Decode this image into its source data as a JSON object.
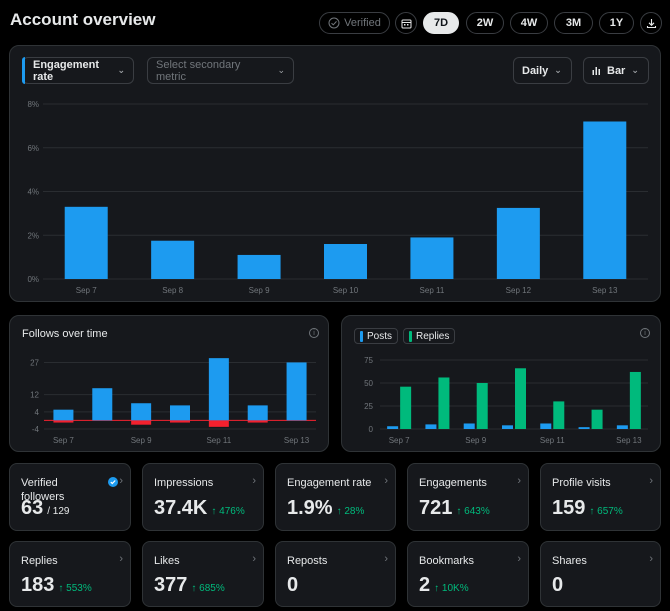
{
  "page": {
    "title": "Account overview"
  },
  "header": {
    "verified_label": "Verified",
    "ranges": [
      "7D",
      "2W",
      "4W",
      "3M",
      "1Y"
    ],
    "selected_range": "7D"
  },
  "main_chart": {
    "primary_metric": "Engagement rate",
    "secondary_placeholder": "Select secondary metric",
    "interval": "Daily",
    "chart_type_label": "Bar"
  },
  "follows_panel": {
    "title": "Follows over time"
  },
  "posts_panel": {
    "legend": [
      "Posts",
      "Replies"
    ]
  },
  "colors": {
    "blue": "#1d9bf0",
    "red": "#f4212e",
    "green": "#00ba7c"
  },
  "chart_data": [
    {
      "type": "bar",
      "categories": [
        "Sep 7",
        "Sep 8",
        "Sep 9",
        "Sep 10",
        "Sep 11",
        "Sep 12",
        "Sep 13"
      ],
      "values": [
        3.3,
        1.75,
        1.1,
        1.6,
        1.9,
        3.25,
        7.2
      ],
      "yticks": [
        "0%",
        "2%",
        "4%",
        "6%",
        "8%"
      ],
      "ylim": [
        0,
        8
      ]
    },
    {
      "type": "bar",
      "title": "Follows over time",
      "categories": [
        "Sep 7",
        "Sep 8",
        "Sep 9",
        "Sep 10",
        "Sep 11",
        "Sep 12",
        "Sep 13"
      ],
      "xticks": [
        "Sep 7",
        "Sep 9",
        "Sep 11",
        "Sep 13"
      ],
      "series": [
        {
          "values": [
            5,
            15,
            8,
            7,
            29,
            7,
            27
          ]
        },
        {
          "values": [
            -1,
            0,
            -2,
            -1,
            -3,
            -1,
            0
          ]
        }
      ],
      "yticks": [
        "-4",
        "4",
        "12",
        "27"
      ],
      "ylim": [
        -4,
        30
      ]
    },
    {
      "type": "bar",
      "categories": [
        "Sep 7",
        "Sep 8",
        "Sep 9",
        "Sep 10",
        "Sep 11",
        "Sep 12",
        "Sep 13"
      ],
      "xticks": [
        "Sep 7",
        "Sep 9",
        "Sep 11",
        "Sep 13"
      ],
      "series": [
        {
          "name": "Posts",
          "values": [
            3,
            5,
            6,
            4,
            6,
            2,
            4
          ]
        },
        {
          "name": "Replies",
          "values": [
            46,
            56,
            50,
            66,
            30,
            21,
            62
          ]
        }
      ],
      "yticks": [
        "0",
        "25",
        "50",
        "75"
      ],
      "ylim": [
        0,
        75
      ]
    }
  ],
  "stats": [
    {
      "label": "Verified followers",
      "value": "63",
      "suffix": "/ 129",
      "change": "",
      "check": true
    },
    {
      "label": "Impressions",
      "value": "37.4K",
      "change": "↑ 476%"
    },
    {
      "label": "Engagement rate",
      "value": "1.9%",
      "change": "↑ 28%"
    },
    {
      "label": "Engagements",
      "value": "721",
      "change": "↑ 643%"
    },
    {
      "label": "Profile visits",
      "value": "159",
      "change": "↑ 657%"
    },
    {
      "label": "Replies",
      "value": "183",
      "change": "↑ 553%"
    },
    {
      "label": "Likes",
      "value": "377",
      "change": "↑ 685%"
    },
    {
      "label": "Reposts",
      "value": "0",
      "change": ""
    },
    {
      "label": "Bookmarks",
      "value": "2",
      "change": "↑ 10K%"
    },
    {
      "label": "Shares",
      "value": "0",
      "change": ""
    }
  ]
}
